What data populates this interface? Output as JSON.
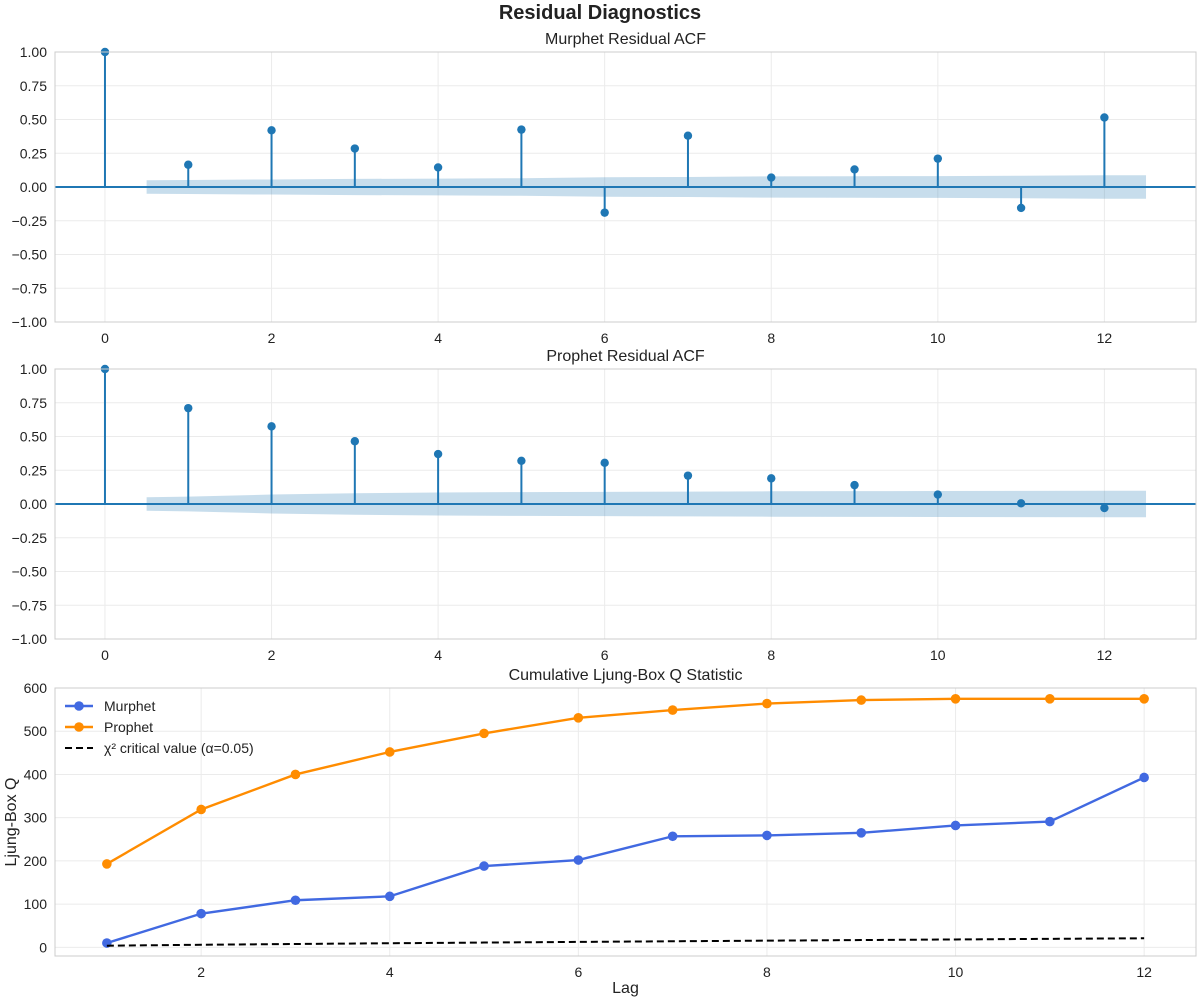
{
  "figure": {
    "title": "Residual Diagnostics"
  },
  "chart_data": [
    {
      "type": "stem",
      "title": "Murphet Residual ACF",
      "xlabel": "",
      "ylabel": "",
      "xlim": [
        -0.6,
        13.1
      ],
      "ylim": [
        -1.0,
        1.0
      ],
      "xticks": [
        0,
        2,
        4,
        6,
        8,
        10,
        12
      ],
      "yticks": [
        -1.0,
        -0.75,
        -0.5,
        -0.25,
        0.0,
        0.25,
        0.5,
        0.75,
        1.0
      ],
      "ytick_labels": [
        "−1.00",
        "−0.75",
        "−0.50",
        "−0.25",
        "0.00",
        "0.25",
        "0.50",
        "0.75",
        "1.00"
      ],
      "grid": true,
      "color": "#1f77b4",
      "band_color": "#1f77b4",
      "lags": [
        0,
        1,
        2,
        3,
        4,
        5,
        6,
        7,
        8,
        9,
        10,
        11,
        12
      ],
      "values": [
        1.0,
        0.165,
        0.42,
        0.285,
        0.145,
        0.425,
        -0.19,
        0.38,
        0.07,
        0.13,
        0.21,
        -0.155,
        0.515
      ],
      "confidence_band": {
        "lags": [
          0.5,
          1,
          2,
          3,
          4,
          5,
          6,
          7,
          8,
          9,
          10,
          11,
          12,
          12.5
        ],
        "upper": [
          0.05,
          0.052,
          0.056,
          0.06,
          0.062,
          0.065,
          0.072,
          0.074,
          0.079,
          0.08,
          0.081,
          0.083,
          0.087,
          0.087
        ],
        "lower": [
          -0.05,
          -0.052,
          -0.056,
          -0.06,
          -0.062,
          -0.065,
          -0.072,
          -0.074,
          -0.079,
          -0.08,
          -0.081,
          -0.083,
          -0.087,
          -0.087
        ]
      }
    },
    {
      "type": "stem",
      "title": "Prophet Residual ACF",
      "xlabel": "",
      "ylabel": "",
      "xlim": [
        -0.6,
        13.1
      ],
      "ylim": [
        -1.0,
        1.0
      ],
      "xticks": [
        0,
        2,
        4,
        6,
        8,
        10,
        12
      ],
      "yticks": [
        -1.0,
        -0.75,
        -0.5,
        -0.25,
        0.0,
        0.25,
        0.5,
        0.75,
        1.0
      ],
      "ytick_labels": [
        "−1.00",
        "−0.75",
        "−0.50",
        "−0.25",
        "0.00",
        "0.25",
        "0.50",
        "0.75",
        "1.00"
      ],
      "grid": true,
      "color": "#1f77b4",
      "band_color": "#1f77b4",
      "lags": [
        0,
        1,
        2,
        3,
        4,
        5,
        6,
        7,
        8,
        9,
        10,
        11,
        12
      ],
      "values": [
        1.0,
        0.71,
        0.575,
        0.465,
        0.37,
        0.32,
        0.305,
        0.21,
        0.19,
        0.14,
        0.07,
        0.005,
        -0.03
      ],
      "confidence_band": {
        "lags": [
          0.5,
          1,
          2,
          3,
          4,
          5,
          6,
          7,
          8,
          9,
          10,
          11,
          12,
          12.5
        ],
        "upper": [
          0.05,
          0.055,
          0.07,
          0.08,
          0.085,
          0.088,
          0.09,
          0.092,
          0.094,
          0.095,
          0.096,
          0.097,
          0.098,
          0.098
        ],
        "lower": [
          -0.05,
          -0.055,
          -0.07,
          -0.08,
          -0.085,
          -0.088,
          -0.09,
          -0.092,
          -0.094,
          -0.095,
          -0.096,
          -0.097,
          -0.098,
          -0.098
        ]
      }
    },
    {
      "type": "line",
      "title": "Cumulative Ljung-Box Q Statistic",
      "xlabel": "Lag",
      "ylabel": "Ljung-Box Q",
      "xlim": [
        0.45,
        12.55
      ],
      "ylim": [
        -20,
        600
      ],
      "xticks": [
        2,
        4,
        6,
        8,
        10,
        12
      ],
      "yticks": [
        0,
        100,
        200,
        300,
        400,
        500,
        600
      ],
      "ytick_labels": [
        "0",
        "100",
        "200",
        "300",
        "400",
        "500",
        "600"
      ],
      "grid": true,
      "legend": "top-left",
      "x": [
        1,
        2,
        3,
        4,
        5,
        6,
        7,
        8,
        9,
        10,
        11,
        12
      ],
      "series": [
        {
          "name": "Murphet",
          "color": "#4169e1",
          "style": "solid",
          "marker": true,
          "values": [
            10,
            78,
            109,
            118,
            188,
            202,
            257,
            259,
            265,
            282,
            291,
            393
          ]
        },
        {
          "name": "Prophet",
          "color": "#ff8c00",
          "style": "solid",
          "marker": true,
          "values": [
            193,
            319,
            400,
            452,
            495,
            531,
            549,
            564,
            572,
            575,
            575,
            575
          ]
        },
        {
          "name": "χ² critical value (α=0.05)",
          "color": "#000000",
          "style": "dashed",
          "marker": false,
          "values": [
            3.8,
            6.0,
            7.8,
            9.5,
            11.1,
            12.6,
            14.1,
            15.5,
            16.9,
            18.3,
            19.7,
            21.0
          ]
        }
      ]
    }
  ]
}
